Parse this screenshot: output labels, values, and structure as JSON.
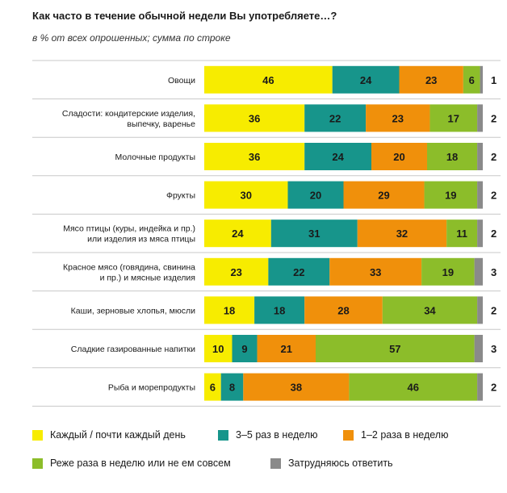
{
  "chart_data": {
    "type": "bar",
    "orientation": "horizontal",
    "stacked": true,
    "title": "Как часто в течение обычной недели Вы употребляете…?",
    "subtitle": "в % от всех опрошенных; сумма по строке",
    "categories": [
      "Овощи",
      "Сладости: кондитерские изделия, выпечку, варенье",
      "Молочные продукты",
      "Фрукты",
      "Мясо птицы (куры, индейка и пр.) или изделия из мяса птицы",
      "Красное мясо (говядина, свинина и пр.) и мясные изделия",
      "Каши, зерновые хлопья, мюсли",
      "Сладкие газированные напитки",
      "Рыба и морепродукты"
    ],
    "category_lines": [
      [
        "Овощи"
      ],
      [
        "Сладости: кондитерские изделия,",
        "выпечку, варенье"
      ],
      [
        "Молочные продукты"
      ],
      [
        "Фрукты"
      ],
      [
        "Мясо птицы (куры, индейка и пр.)",
        "или изделия из мяса птицы"
      ],
      [
        "Красное мясо (говядина, свинина",
        "и пр.) и мясные изделия"
      ],
      [
        "Каши, зерновые хлопья, мюсли"
      ],
      [
        "Сладкие газированные напитки"
      ],
      [
        "Рыба и морепродукты"
      ]
    ],
    "series": [
      {
        "name": "Каждый / почти каждый день",
        "color": "#f7ec00",
        "values": [
          46,
          36,
          36,
          30,
          24,
          23,
          18,
          10,
          6
        ]
      },
      {
        "name": "3–5 раз в неделю",
        "color": "#17958b",
        "values": [
          24,
          22,
          24,
          20,
          31,
          22,
          18,
          9,
          8
        ]
      },
      {
        "name": "1–2 раза в неделю",
        "color": "#f0900b",
        "values": [
          23,
          23,
          20,
          29,
          32,
          33,
          28,
          21,
          38
        ]
      },
      {
        "name": "Реже раза в неделю или не ем совсем",
        "color": "#8cbd2a",
        "values": [
          6,
          17,
          18,
          19,
          11,
          19,
          34,
          57,
          46
        ]
      },
      {
        "name": "Затрудняюсь ответить",
        "color": "#8a8a8a",
        "values": [
          1,
          2,
          2,
          2,
          2,
          3,
          2,
          3,
          2
        ]
      }
    ],
    "xlim": [
      0,
      100
    ],
    "legend_position": "bottom"
  }
}
